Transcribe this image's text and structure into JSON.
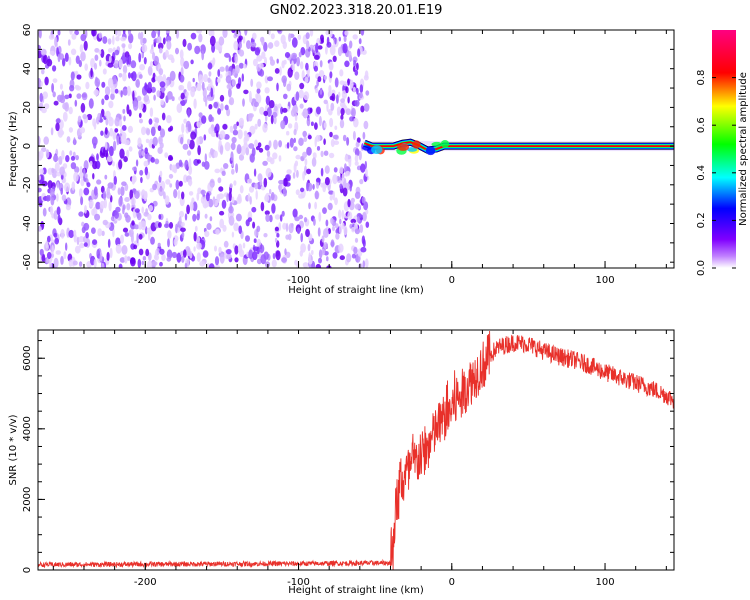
{
  "title": "GN02.2023.318.20.01.E19",
  "chart_data": [
    {
      "type": "heatmap",
      "xlabel": "Height of straight line (km)",
      "ylabel": "Frequency (Hz)",
      "xlim": [
        -270,
        145
      ],
      "ylim": [
        -63,
        60
      ],
      "xticks": [
        -200,
        -100,
        0,
        100
      ],
      "yticks": [
        -60,
        -40,
        -20,
        0,
        20,
        40,
        60
      ],
      "noise_region_x": [
        -270,
        -55
      ],
      "signal_line": {
        "frequency_hz": 0,
        "x_start": -58,
        "x_end": 145,
        "points": [
          {
            "x": -57,
            "y": 1.5
          },
          {
            "x": -52,
            "y": 0
          },
          {
            "x": -45,
            "y": 0
          },
          {
            "x": -38,
            "y": 0
          },
          {
            "x": -32,
            "y": 1.5
          },
          {
            "x": -27,
            "y": 2
          },
          {
            "x": -22,
            "y": 0.5
          },
          {
            "x": -16,
            "y": -2
          },
          {
            "x": -10,
            "y": -1.5
          },
          {
            "x": -5,
            "y": 0
          },
          {
            "x": 0,
            "y": 0
          },
          {
            "x": 145,
            "y": 0
          }
        ]
      },
      "colorbar": {
        "label": "Normalized spectral amplitude",
        "range": [
          0,
          1
        ],
        "ticks": [
          0.0,
          0.2,
          0.4,
          0.6,
          0.8
        ],
        "tick_labels": [
          "0.0",
          "0.2",
          "0.4",
          "0.6",
          "0.8"
        ],
        "colormap": [
          "#ffffff",
          "#8000ff",
          "#0000ff",
          "#00ffff",
          "#00ff00",
          "#ffff00",
          "#ff0000",
          "#ff0080"
        ]
      },
      "grid": false
    },
    {
      "type": "line",
      "xlabel": "Height of straight line (km)",
      "ylabel": "SNR (10 * v/v)",
      "xlim": [
        -270,
        145
      ],
      "ylim": [
        0,
        6800
      ],
      "xticks": [
        -200,
        -100,
        0,
        100
      ],
      "yticks": [
        0,
        2000,
        4000,
        6000
      ],
      "series": [
        {
          "color": "#e8302a",
          "x": [
            -270,
            -100,
            -40,
            -37,
            -34,
            -30,
            -25,
            -20,
            -15,
            -10,
            -5,
            0,
            5,
            10,
            15,
            20,
            25,
            30,
            40,
            50,
            60,
            70,
            80,
            90,
            100,
            110,
            120,
            130,
            140,
            145
          ],
          "y": [
            150,
            180,
            200,
            1500,
            2400,
            2700,
            3000,
            3200,
            3500,
            4000,
            4300,
            4600,
            4900,
            5200,
            5500,
            5800,
            6100,
            6300,
            6450,
            6400,
            6200,
            6050,
            5950,
            5800,
            5600,
            5450,
            5300,
            5150,
            4950,
            4800
          ]
        }
      ],
      "grid": false
    }
  ]
}
